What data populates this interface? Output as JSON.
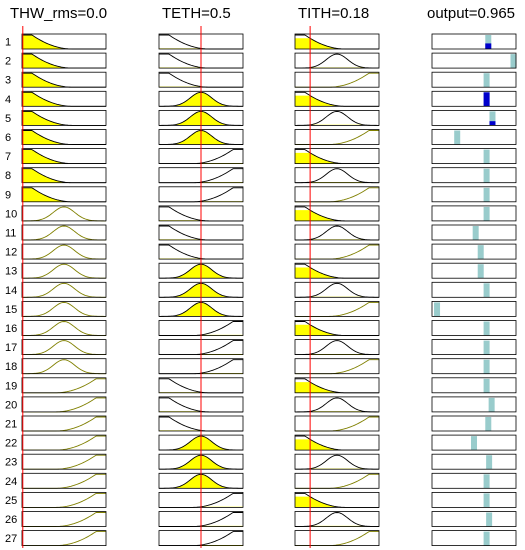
{
  "headers": [
    {
      "id": "thw",
      "label": "THW_rms=0.0"
    },
    {
      "id": "teth",
      "label": "TETH=0.5"
    },
    {
      "id": "tith",
      "label": "TITH=0.18"
    },
    {
      "id": "output",
      "label": "output=0.965"
    }
  ],
  "inputs": {
    "thw": {
      "value": 0.0,
      "range": [
        0,
        1
      ]
    },
    "teth": {
      "value": 0.5,
      "range": [
        0,
        1
      ]
    },
    "tith": {
      "value": 0.18,
      "range": [
        0,
        1
      ]
    }
  },
  "colors": {
    "fill": "#ffff00",
    "mf_line": "#808000",
    "mf_active_line": "#000000",
    "marker": "#ff0000",
    "output_bar": "#99cccc",
    "output_active": "#0000cc"
  },
  "membership_sets": {
    "thw": [
      "low",
      "mid",
      "high"
    ],
    "teth": [
      "low",
      "mid",
      "high"
    ],
    "tith": [
      "low",
      "mid",
      "high"
    ]
  },
  "rules": [
    {
      "id": "1",
      "thw": "low",
      "teth": "low",
      "tith": "low",
      "out": 0.67,
      "active": 0.4
    },
    {
      "id": "2",
      "thw": "low",
      "teth": "low",
      "tith": "mid",
      "out": 0.97,
      "active": 0
    },
    {
      "id": "3",
      "thw": "low",
      "teth": "low",
      "tith": "high",
      "out": 0.65,
      "active": 0
    },
    {
      "id": "4",
      "thw": "low",
      "teth": "mid",
      "tith": "low",
      "out": 0.65,
      "active": 1.0
    },
    {
      "id": "5",
      "thw": "low",
      "teth": "mid",
      "tith": "mid",
      "out": 0.72,
      "active": 0.3
    },
    {
      "id": "6",
      "thw": "low",
      "teth": "mid",
      "tith": "high",
      "out": 0.3,
      "active": 0
    },
    {
      "id": "7",
      "thw": "low",
      "teth": "high",
      "tith": "low",
      "out": 0.65,
      "active": 0
    },
    {
      "id": "8",
      "thw": "low",
      "teth": "high",
      "tith": "mid",
      "out": 0.65,
      "active": 0
    },
    {
      "id": "9",
      "thw": "low",
      "teth": "high",
      "tith": "high",
      "out": 0.65,
      "active": 0
    },
    {
      "id": "10",
      "thw": "mid",
      "teth": "low",
      "tith": "low",
      "out": 0.65,
      "active": 0
    },
    {
      "id": "11",
      "thw": "mid",
      "teth": "low",
      "tith": "mid",
      "out": 0.52,
      "active": 0
    },
    {
      "id": "12",
      "thw": "mid",
      "teth": "low",
      "tith": "high",
      "out": 0.58,
      "active": 0
    },
    {
      "id": "13",
      "thw": "mid",
      "teth": "mid",
      "tith": "low",
      "out": 0.58,
      "active": 0
    },
    {
      "id": "14",
      "thw": "mid",
      "teth": "mid",
      "tith": "mid",
      "out": 0.65,
      "active": 0
    },
    {
      "id": "15",
      "thw": "mid",
      "teth": "mid",
      "tith": "high",
      "out": 0.06,
      "active": 0
    },
    {
      "id": "16",
      "thw": "mid",
      "teth": "high",
      "tith": "low",
      "out": 0.65,
      "active": 0
    },
    {
      "id": "17",
      "thw": "mid",
      "teth": "high",
      "tith": "mid",
      "out": 0.65,
      "active": 0
    },
    {
      "id": "18",
      "thw": "mid",
      "teth": "high",
      "tith": "high",
      "out": 0.65,
      "active": 0
    },
    {
      "id": "19",
      "thw": "high",
      "teth": "low",
      "tith": "low",
      "out": 0.65,
      "active": 0
    },
    {
      "id": "20",
      "thw": "high",
      "teth": "low",
      "tith": "mid",
      "out": 0.71,
      "active": 0
    },
    {
      "id": "21",
      "thw": "high",
      "teth": "low",
      "tith": "high",
      "out": 0.67,
      "active": 0
    },
    {
      "id": "22",
      "thw": "high",
      "teth": "mid",
      "tith": "low",
      "out": 0.5,
      "active": 0
    },
    {
      "id": "23",
      "thw": "high",
      "teth": "mid",
      "tith": "mid",
      "out": 0.68,
      "active": 0
    },
    {
      "id": "24",
      "thw": "high",
      "teth": "mid",
      "tith": "high",
      "out": 0.65,
      "active": 0
    },
    {
      "id": "25",
      "thw": "high",
      "teth": "high",
      "tith": "low",
      "out": 0.65,
      "active": 0
    },
    {
      "id": "26",
      "thw": "high",
      "teth": "high",
      "tith": "mid",
      "out": 0.68,
      "active": 0
    },
    {
      "id": "27",
      "thw": "high",
      "teth": "high",
      "tith": "high",
      "out": 0.65,
      "active": 0
    }
  ]
}
